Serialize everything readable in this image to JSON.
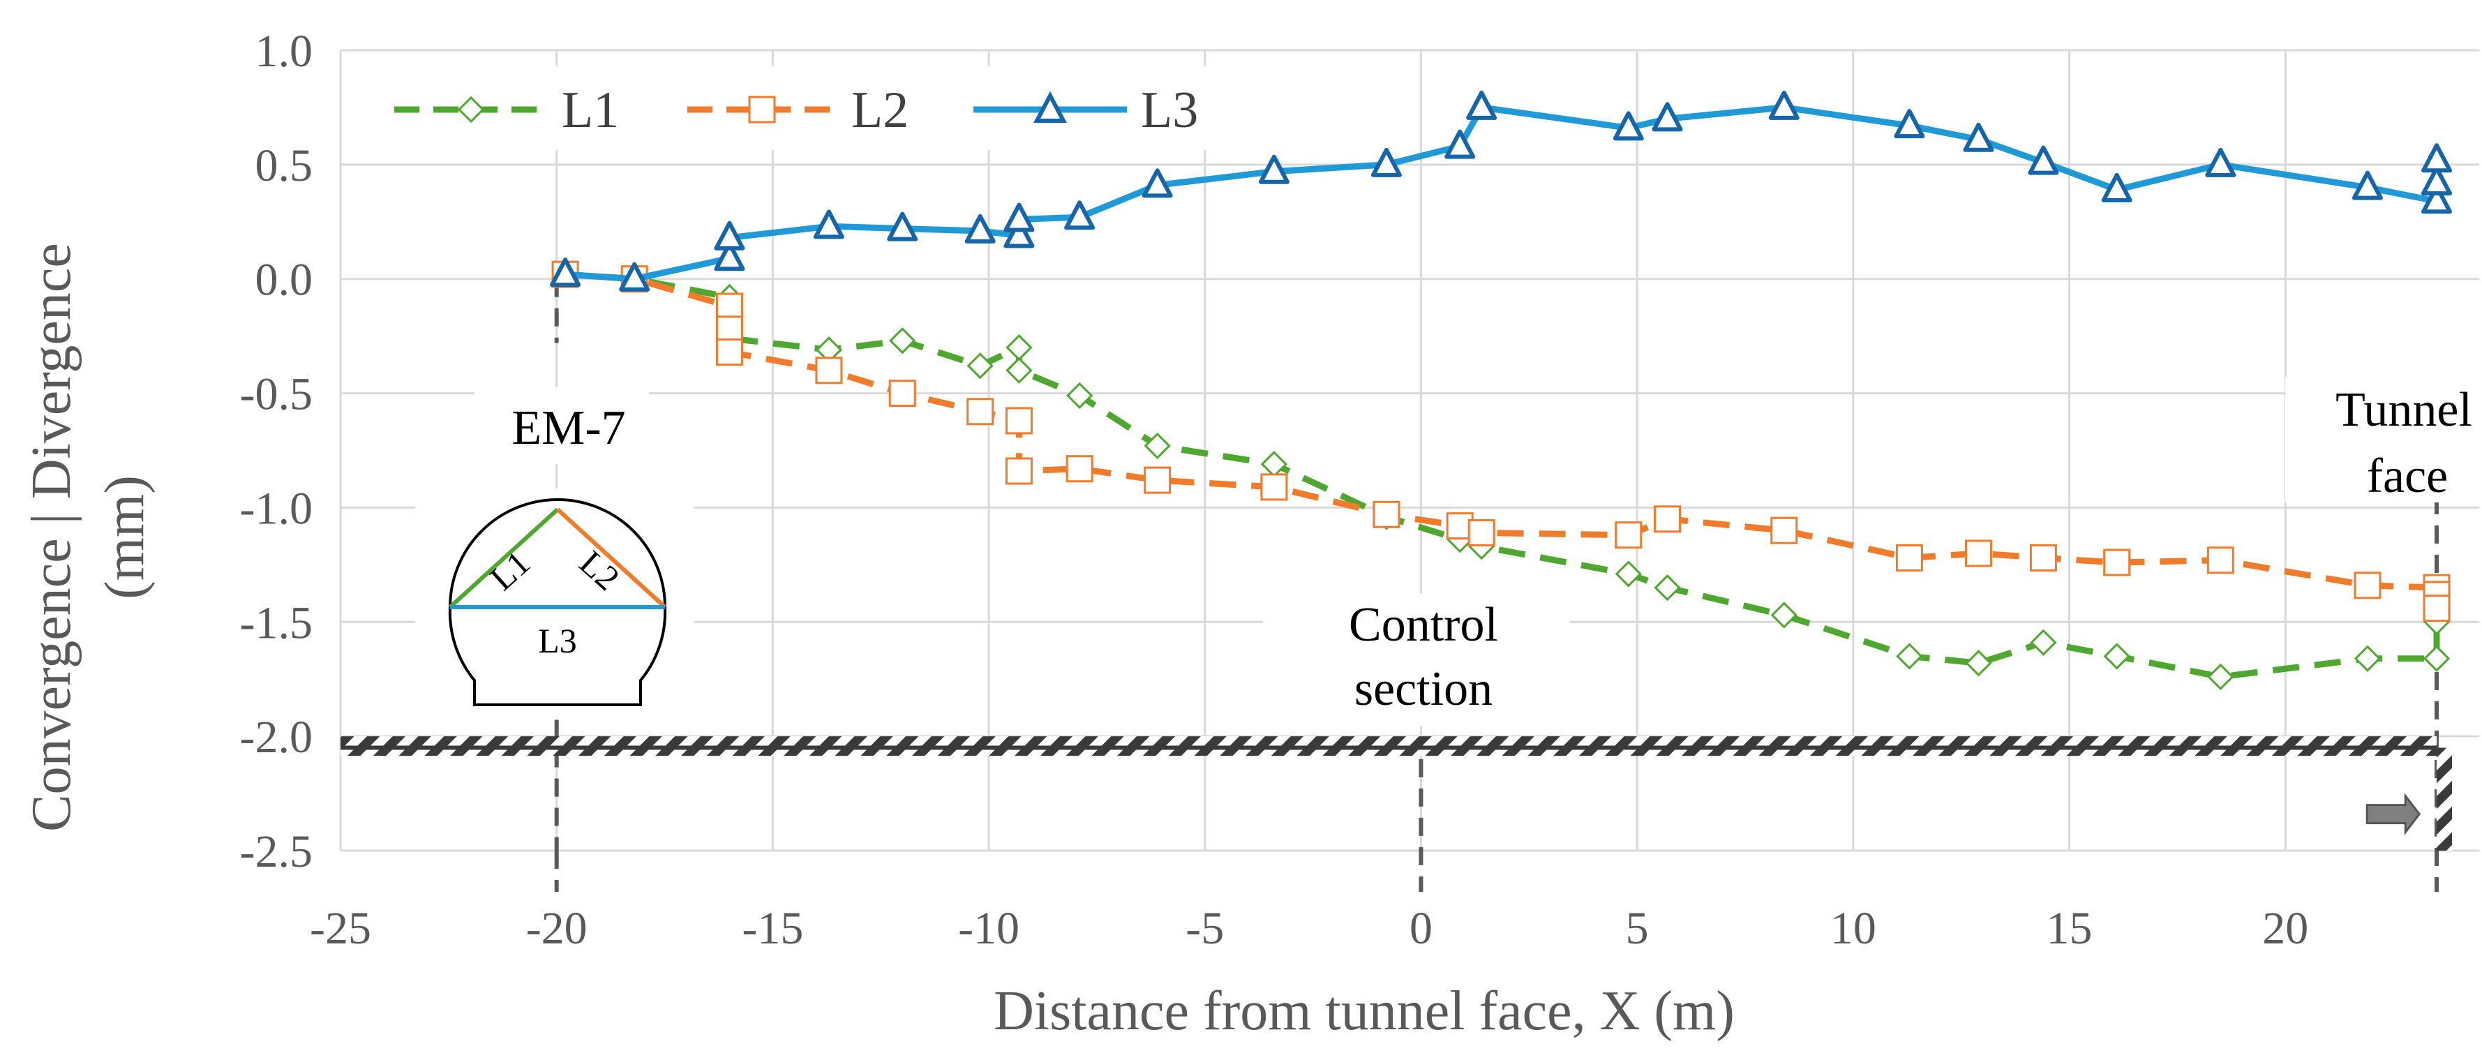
{
  "chart_data": {
    "type": "line",
    "title": "",
    "xlabel": "Distance from tunnel face, X (m)",
    "ylabel": "Convergence | Divergence (mm)",
    "xlim": [
      -25,
      24
    ],
    "ylim": [
      -2.5,
      1.0
    ],
    "xticks": [
      -25,
      -20,
      -15,
      -10,
      -5,
      0,
      5,
      10,
      15,
      20
    ],
    "yticks": [
      1.0,
      0.5,
      0.0,
      -0.5,
      -1.0,
      -1.5,
      -2.0,
      -2.5
    ],
    "xtick_labels": [
      "-25",
      "-20",
      "-15",
      "-10",
      "-5",
      "0",
      "5",
      "10",
      "15",
      "20"
    ],
    "ytick_labels": [
      "1.0",
      "0.5",
      "0.0",
      "-0.5",
      "-1.0",
      "-1.5",
      "-2.0",
      "-2.5"
    ],
    "grid": true,
    "legend_position": "top-left",
    "series": [
      {
        "name": "L1",
        "color": "#4EA72E",
        "line_style": "dashed",
        "marker": "diamond-open",
        "x": [
          -19.8,
          -18.2,
          -16.0,
          -16.0,
          -16.0,
          -13.7,
          -12.0,
          -10.2,
          -9.3,
          -9.3,
          -7.9,
          -6.1,
          -3.4,
          -0.8,
          0.9,
          1.4,
          4.8,
          5.7,
          8.4,
          11.3,
          12.9,
          14.4,
          16.1,
          18.5,
          21.9,
          23.5,
          23.5,
          23.5
        ],
        "y": [
          0.02,
          0.0,
          -0.08,
          -0.18,
          -0.26,
          -0.31,
          -0.27,
          -0.38,
          -0.3,
          -0.4,
          -0.51,
          -0.73,
          -0.81,
          -1.04,
          -1.14,
          -1.17,
          -1.29,
          -1.35,
          -1.47,
          -1.65,
          -1.68,
          -1.59,
          -1.65,
          -1.74,
          -1.66,
          -1.66,
          -1.5,
          -1.44
        ]
      },
      {
        "name": "L2",
        "color": "#F07B2A",
        "line_style": "dashed",
        "marker": "square-open",
        "x": [
          -19.8,
          -18.2,
          -16.0,
          -16.0,
          -16.0,
          -13.7,
          -12.0,
          -10.2,
          -9.3,
          -9.3,
          -7.9,
          -6.1,
          -3.4,
          -0.8,
          0.9,
          1.4,
          4.8,
          5.7,
          8.4,
          11.3,
          12.9,
          14.4,
          16.1,
          18.5,
          21.9,
          23.5,
          23.5,
          23.5
        ],
        "y": [
          0.02,
          0.0,
          -0.12,
          -0.22,
          -0.32,
          -0.4,
          -0.5,
          -0.58,
          -0.62,
          -0.84,
          -0.83,
          -0.88,
          -0.91,
          -1.03,
          -1.08,
          -1.11,
          -1.12,
          -1.05,
          -1.1,
          -1.22,
          -1.2,
          -1.22,
          -1.24,
          -1.23,
          -1.34,
          -1.35,
          -1.38,
          -1.44
        ]
      },
      {
        "name": "L3",
        "color": "#1F9AD6",
        "line_style": "solid",
        "marker": "triangle-open",
        "x": [
          -19.8,
          -18.2,
          -16.0,
          -16.0,
          -13.7,
          -12.0,
          -10.2,
          -9.3,
          -9.3,
          -7.9,
          -6.1,
          -3.4,
          -0.8,
          0.9,
          1.4,
          4.8,
          5.7,
          8.4,
          11.3,
          12.9,
          14.4,
          16.1,
          18.5,
          21.9,
          23.5,
          23.5,
          23.5
        ],
        "y": [
          0.02,
          0.0,
          0.09,
          0.18,
          0.23,
          0.22,
          0.21,
          0.19,
          0.26,
          0.27,
          0.41,
          0.47,
          0.5,
          0.58,
          0.75,
          0.66,
          0.7,
          0.75,
          0.67,
          0.61,
          0.51,
          0.39,
          0.5,
          0.4,
          0.34,
          0.42,
          0.52
        ]
      }
    ],
    "annotations": [
      {
        "id": "em7",
        "text": "EM-7"
      },
      {
        "id": "control1",
        "text": "Control"
      },
      {
        "id": "control2",
        "text": "section"
      },
      {
        "id": "face1",
        "text": "Tunnel"
      },
      {
        "id": "face2",
        "text": "face"
      }
    ],
    "reference_lines_x": [
      -20,
      0,
      23.5
    ],
    "ground_line_y": -2.05,
    "inset_labels": [
      "L1",
      "L2",
      "L3"
    ]
  }
}
